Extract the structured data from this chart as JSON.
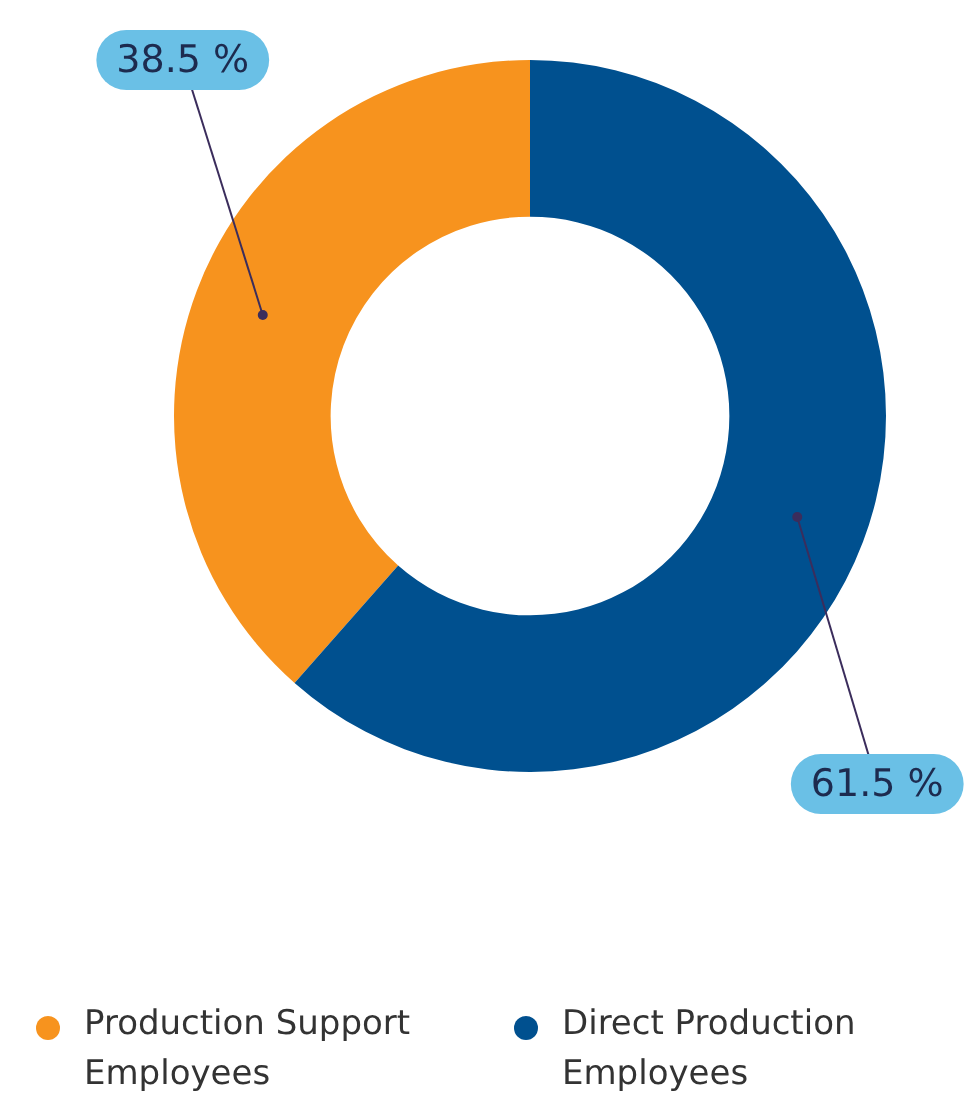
{
  "chart_data": {
    "type": "donut",
    "categories": [
      "Production Support Employees",
      "Direct Production Employees"
    ],
    "values": [
      38.5,
      61.5
    ],
    "colors": [
      "#f7931e",
      "#00508f"
    ],
    "value_labels": [
      "38.5 %",
      "61.5 %"
    ],
    "legend": "bottom"
  }
}
